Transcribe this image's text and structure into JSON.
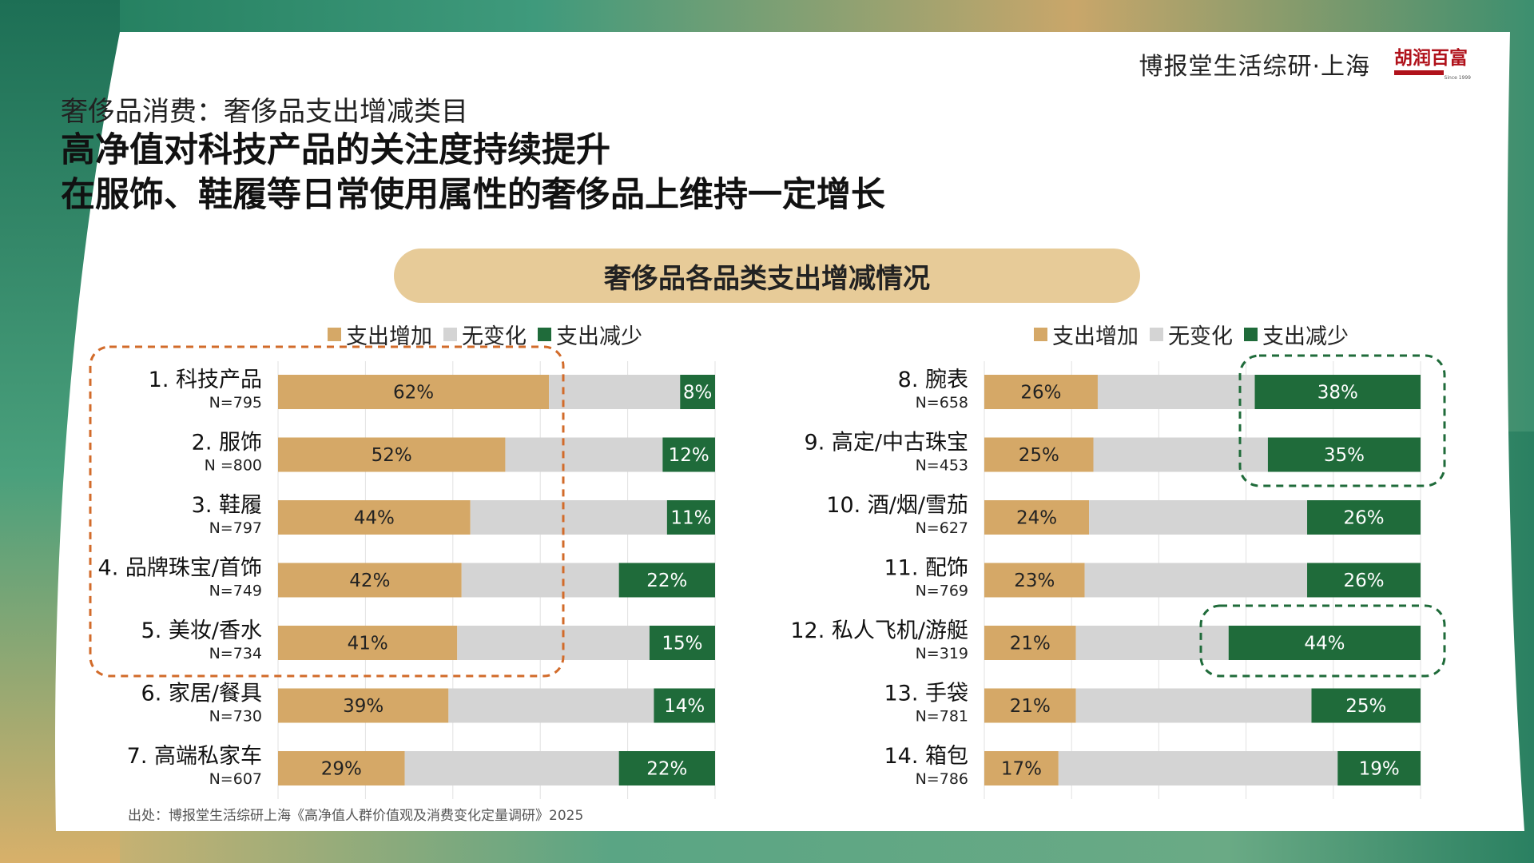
{
  "header": {
    "brand": "博报堂生活综研·上海",
    "logo_text": "胡润百富",
    "logo_since": "Since 1999"
  },
  "subtitle": "奢侈品消费：奢侈品支出增减类目",
  "headline": {
    "line1": "高净值对科技产品的关注度持续提升",
    "line2": "在服饰、鞋履等日常使用属性的奢侈品上维持一定增长"
  },
  "banner": "奢侈品各品类支出增减情况",
  "legend": {
    "increase": "支出增加",
    "nochange": "无变化",
    "decrease": "支出减少"
  },
  "colors": {
    "increase": "#d5a867",
    "nochange": "#d4d4d4",
    "decrease": "#1f6b3a",
    "highlight_orange": "#d26b2a",
    "highlight_green": "#1f6b3a",
    "banner": "#e7cb98"
  },
  "source": "出处：博报堂生活综研上海《高净值人群价值观及消费变化定量调研》2025",
  "chart_data": [
    {
      "type": "bar",
      "stacked": true,
      "orientation": "horizontal",
      "series": [
        {
          "name": "支出增加",
          "values": [
            62,
            52,
            44,
            42,
            41,
            39,
            29
          ]
        },
        {
          "name": "无变化",
          "values": [
            30,
            36,
            45,
            36,
            44,
            47,
            49
          ]
        },
        {
          "name": "支出减少",
          "values": [
            8,
            12,
            11,
            22,
            15,
            14,
            22
          ]
        }
      ],
      "categories": [
        "1. 科技产品",
        "2. 服饰",
        "3. 鞋履",
        "4. 品牌珠宝/首饰",
        "5. 美妆/香水",
        "6. 家居/餐具",
        "7. 高端私家车"
      ],
      "n_labels": [
        "N=795",
        "N =800",
        "N=797",
        "N=749",
        "N=734",
        "N=730",
        "N=607"
      ],
      "label_texts": {
        "increase": [
          "62%",
          "52%",
          "44%",
          "42%",
          "41%",
          "39%",
          "29%"
        ],
        "decrease": [
          "8%",
          "12%",
          "11%",
          "22%",
          "15%",
          "14%",
          "22%"
        ]
      },
      "xlim": [
        0,
        100
      ],
      "grid": true,
      "highlight_rows": [
        0,
        4
      ],
      "highlight_style": "orange-dashed"
    },
    {
      "type": "bar",
      "stacked": true,
      "orientation": "horizontal",
      "series": [
        {
          "name": "支出增加",
          "values": [
            26,
            25,
            24,
            23,
            21,
            21,
            17
          ]
        },
        {
          "name": "无变化",
          "values": [
            36,
            40,
            50,
            51,
            35,
            54,
            64
          ]
        },
        {
          "name": "支出减少",
          "values": [
            38,
            35,
            26,
            26,
            44,
            25,
            19
          ]
        }
      ],
      "categories": [
        "8. 腕表",
        "9. 高定/中古珠宝",
        "10. 酒/烟/雪茄",
        "11. 配饰",
        "12. 私人飞机/游艇",
        "13. 手袋",
        "14. 箱包"
      ],
      "n_labels": [
        "N=658",
        "N=453",
        "N=627",
        "N=769",
        "N=319",
        "N=781",
        "N=786"
      ],
      "label_texts": {
        "increase": [
          "26%",
          "25%",
          "24%",
          "23%",
          "21%",
          "21%",
          "17%"
        ],
        "decrease": [
          "38%",
          "35%",
          "26%",
          "26%",
          "44%",
          "25%",
          "19%"
        ]
      },
      "xlim": [
        0,
        100
      ],
      "grid": true,
      "highlight_groups": [
        [
          0,
          1
        ],
        [
          4,
          4
        ]
      ],
      "highlight_style": "green-dashed"
    }
  ]
}
